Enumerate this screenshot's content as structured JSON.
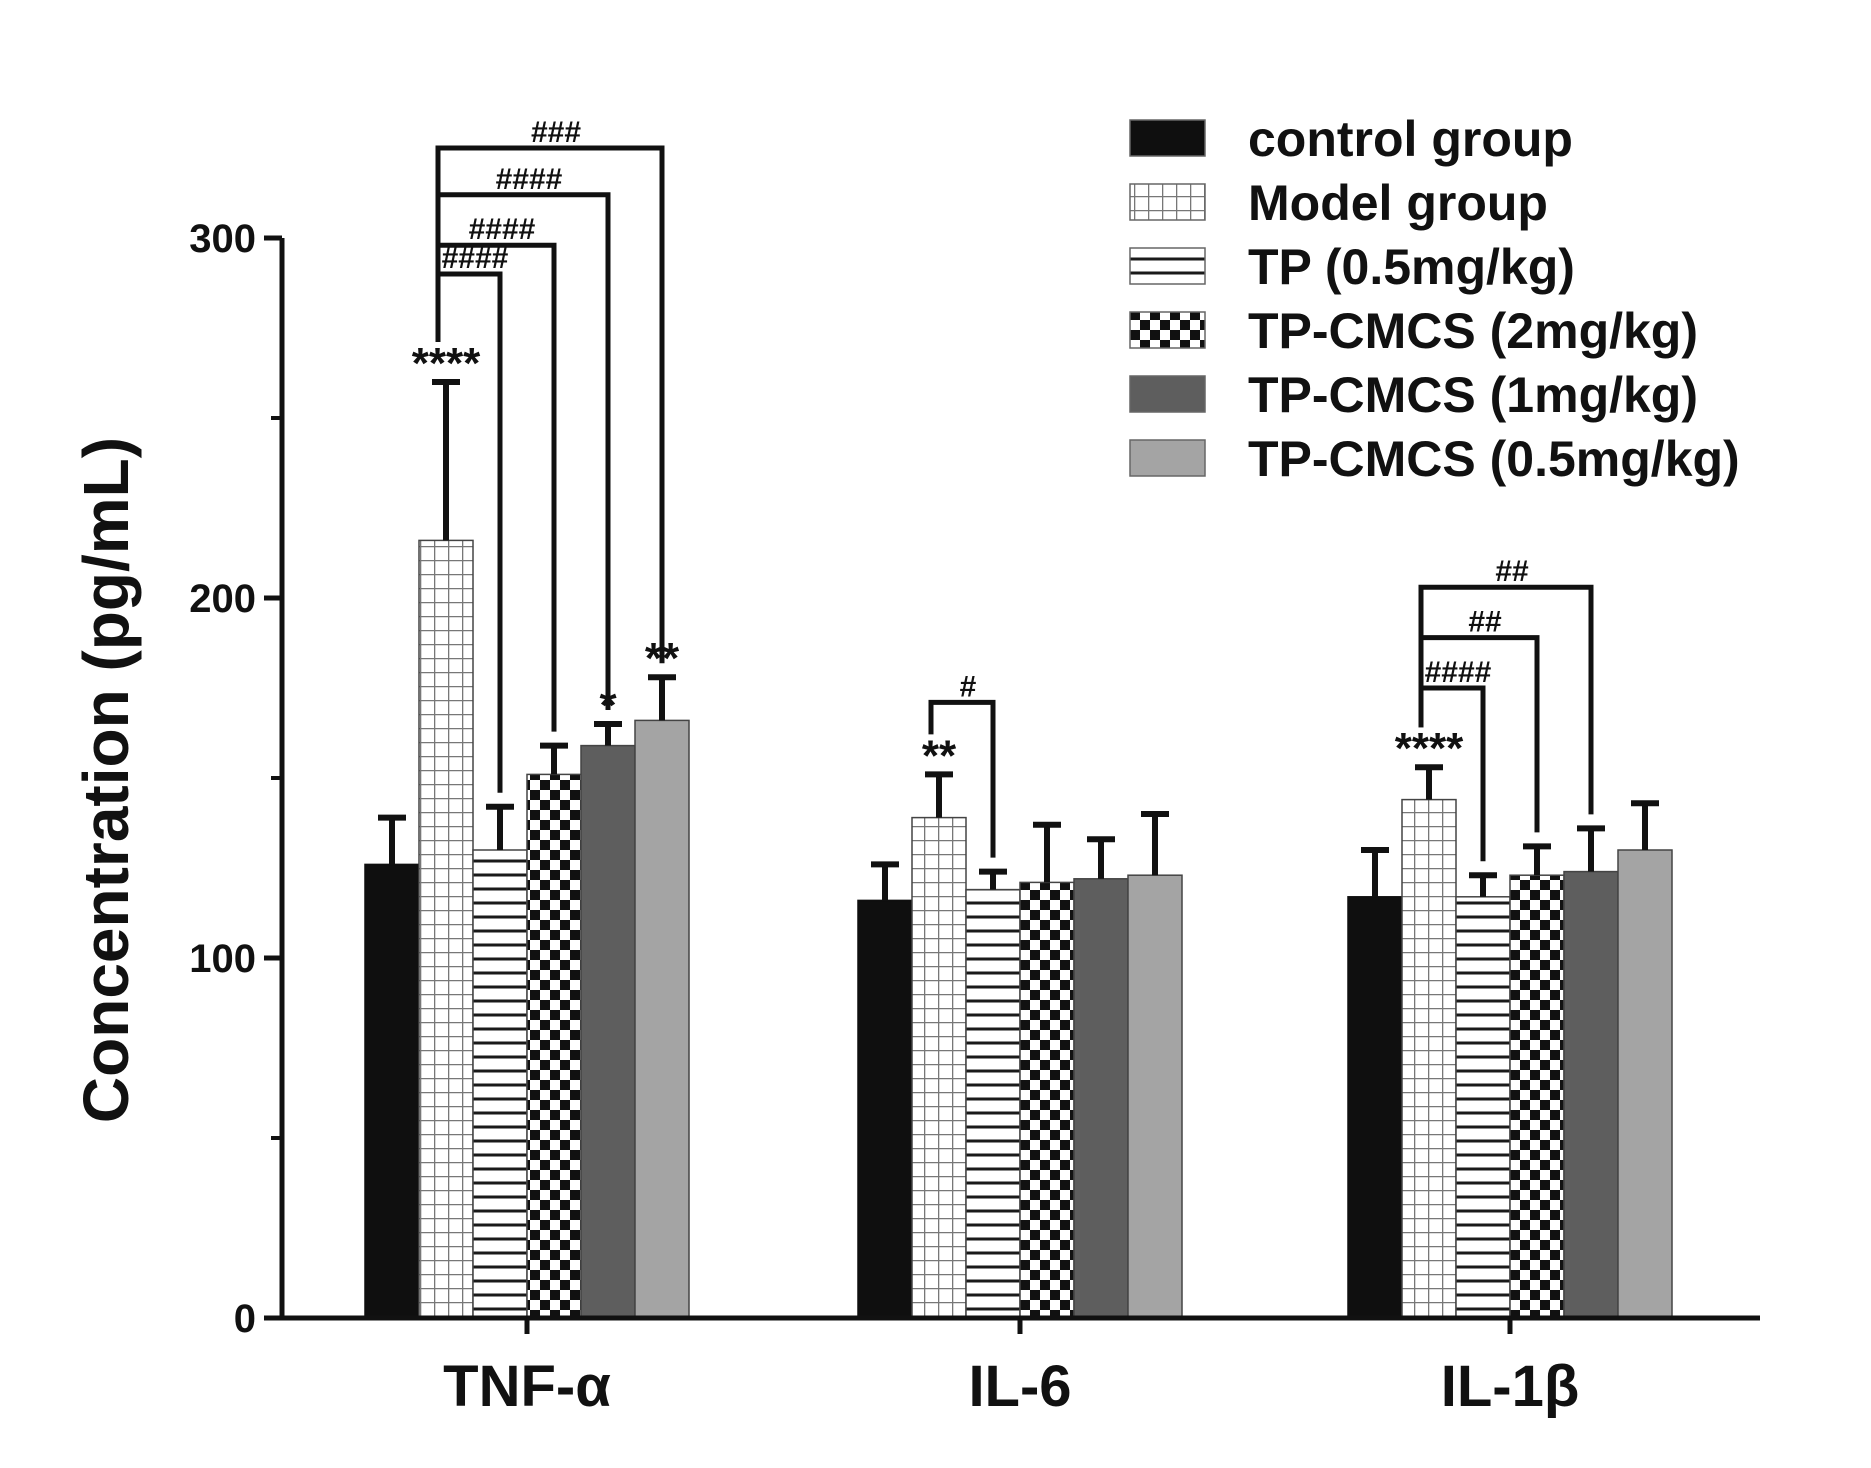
{
  "chart_data": {
    "type": "bar",
    "title": "",
    "xlabel": "",
    "ylabel": "Concentration (pg/mL)",
    "ylim": [
      0,
      300
    ],
    "yticks": [
      0,
      100,
      200,
      300
    ],
    "yticks_minor": [
      50,
      150,
      250
    ],
    "grid": false,
    "legend_position": "top-right",
    "categories": [
      "TNF-α",
      "IL-6",
      "IL-1β"
    ],
    "series": [
      {
        "name": "control group",
        "pattern": "solid-black",
        "values": [
          126,
          116,
          117
        ],
        "errors": [
          13,
          10,
          13
        ]
      },
      {
        "name": "Model group",
        "pattern": "grid",
        "values": [
          216,
          139,
          144
        ],
        "errors": [
          44,
          12,
          9
        ]
      },
      {
        "name": "TP (0.5mg/kg)",
        "pattern": "horizontal-lines",
        "values": [
          130,
          119,
          117
        ],
        "errors": [
          12,
          5,
          6
        ]
      },
      {
        "name": "TP-CMCS (2mg/kg)",
        "pattern": "checker",
        "values": [
          151,
          121,
          123
        ],
        "errors": [
          8,
          16,
          8
        ]
      },
      {
        "name": "TP-CMCS (1mg/kg)",
        "pattern": "solid-darkgray",
        "values": [
          159,
          122,
          124
        ],
        "errors": [
          6,
          11,
          12
        ]
      },
      {
        "name": "TP-CMCS (0.5mg/kg)",
        "pattern": "solid-lightgray",
        "values": [
          166,
          123,
          130
        ],
        "errors": [
          12,
          17,
          13
        ]
      }
    ],
    "star_annotations": [
      {
        "category": 0,
        "series": 1,
        "text": "****"
      },
      {
        "category": 0,
        "series": 4,
        "text": "*"
      },
      {
        "category": 0,
        "series": 5,
        "text": "**"
      },
      {
        "category": 1,
        "series": 1,
        "text": "**"
      },
      {
        "category": 2,
        "series": 1,
        "text": "****"
      }
    ],
    "hash_brackets": [
      {
        "category": 0,
        "from": 1,
        "to": 2,
        "text": "####",
        "level": 290
      },
      {
        "category": 0,
        "from": 1,
        "to": 3,
        "text": "####",
        "level": 298
      },
      {
        "category": 0,
        "from": 1,
        "to": 4,
        "text": "####",
        "level": 312
      },
      {
        "category": 0,
        "from": 1,
        "to": 5,
        "text": "###",
        "level": 325
      },
      {
        "category": 1,
        "from": 1,
        "to": 2,
        "text": "#",
        "level": 171
      },
      {
        "category": 2,
        "from": 1,
        "to": 2,
        "text": "####",
        "level": 175
      },
      {
        "category": 2,
        "from": 1,
        "to": 3,
        "text": "##",
        "level": 189
      },
      {
        "category": 2,
        "from": 1,
        "to": 4,
        "text": "##",
        "level": 203
      }
    ]
  },
  "colors": {
    "control": "#0f0f0f",
    "dark_gray": "#5e5e5e",
    "light_gray": "#a4a4a4",
    "pattern_line": "#222222",
    "axis": "#111111"
  }
}
